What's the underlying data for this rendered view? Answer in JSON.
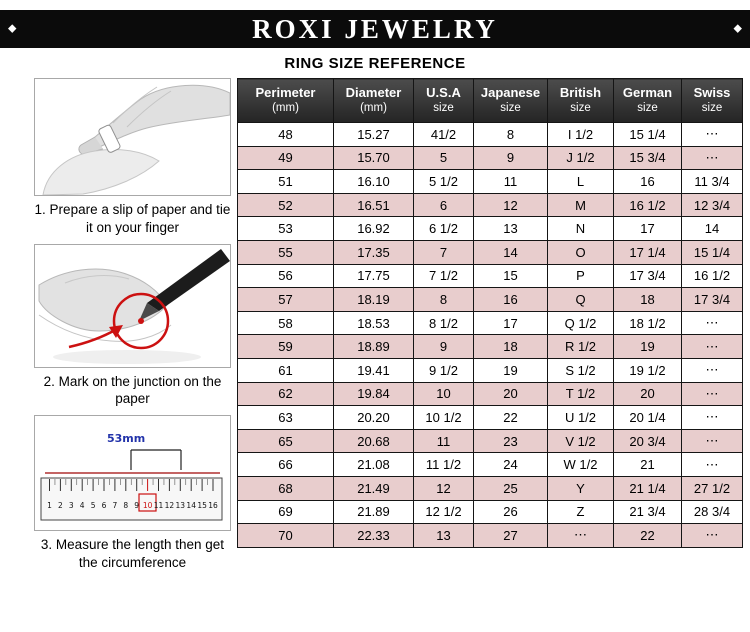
{
  "banner": {
    "title": "ROXI JEWELRY",
    "left_ornament": "◆",
    "right_ornament": "◆"
  },
  "subtitle": "RING SIZE REFERENCE",
  "steps": [
    {
      "caption": "1. Prepare a slip of paper and tie it on your finger",
      "illustration": "hands-tying-paper-slip-on-finger"
    },
    {
      "caption": "2. Mark on the junction on the paper",
      "illustration": "pen-marking-junction-on-paper"
    },
    {
      "caption": "3. Measure the length then get the circumference",
      "illustration": "ruler-measuring-paper-strip",
      "ruler_label": "53mm",
      "ruler_numbers": [
        "1",
        "2",
        "3",
        "4",
        "5",
        "6",
        "7",
        "8",
        "9",
        "10",
        "11",
        "12",
        "13",
        "14",
        "15",
        "16"
      ]
    }
  ],
  "size_table": {
    "headers": [
      [
        "Perimeter",
        "(mm)"
      ],
      [
        "Diameter",
        "(mm)"
      ],
      [
        "U.S.A",
        "size"
      ],
      [
        "Japanese",
        "size"
      ],
      [
        "British",
        "size"
      ],
      [
        "German",
        "size"
      ],
      [
        "Swiss",
        "size"
      ]
    ],
    "rows": [
      [
        "48",
        "15.27",
        "41/2",
        "8",
        "I 1/2",
        "15 1/4",
        "⋯"
      ],
      [
        "49",
        "15.70",
        "5",
        "9",
        "J 1/2",
        "15 3/4",
        "⋯"
      ],
      [
        "51",
        "16.10",
        "5 1/2",
        "11",
        "L",
        "16",
        "11 3/4"
      ],
      [
        "52",
        "16.51",
        "6",
        "12",
        "M",
        "16 1/2",
        "12 3/4"
      ],
      [
        "53",
        "16.92",
        "6 1/2",
        "13",
        "N",
        "17",
        "14"
      ],
      [
        "55",
        "17.35",
        "7",
        "14",
        "O",
        "17 1/4",
        "15 1/4"
      ],
      [
        "56",
        "17.75",
        "7 1/2",
        "15",
        "P",
        "17 3/4",
        "16 1/2"
      ],
      [
        "57",
        "18.19",
        "8",
        "16",
        "Q",
        "18",
        "17 3/4"
      ],
      [
        "58",
        "18.53",
        "8 1/2",
        "17",
        "Q 1/2",
        "18 1/2",
        "⋯"
      ],
      [
        "59",
        "18.89",
        "9",
        "18",
        "R 1/2",
        "19",
        "⋯"
      ],
      [
        "61",
        "19.41",
        "9 1/2",
        "19",
        "S 1/2",
        "19 1/2",
        "⋯"
      ],
      [
        "62",
        "19.84",
        "10",
        "20",
        "T 1/2",
        "20",
        "⋯"
      ],
      [
        "63",
        "20.20",
        "10 1/2",
        "22",
        "U 1/2",
        "20 1/4",
        "⋯"
      ],
      [
        "65",
        "20.68",
        "11",
        "23",
        "V 1/2",
        "20 3/4",
        "⋯"
      ],
      [
        "66",
        "21.08",
        "11 1/2",
        "24",
        "W 1/2",
        "21",
        "⋯"
      ],
      [
        "68",
        "21.49",
        "12",
        "25",
        "Y",
        "21 1/4",
        "27 1/2"
      ],
      [
        "69",
        "21.89",
        "12 1/2",
        "26",
        "Z",
        "21 3/4",
        "28 3/4"
      ],
      [
        "70",
        "22.33",
        "13",
        "27",
        "⋯",
        "22",
        "⋯"
      ]
    ],
    "colors": {
      "row_pink": "#e8cdcd",
      "row_white": "#ffffff",
      "header_bg_top": "#4c4c4c",
      "header_bg_bottom": "#242424",
      "annotation_red": "#cc1111"
    }
  }
}
